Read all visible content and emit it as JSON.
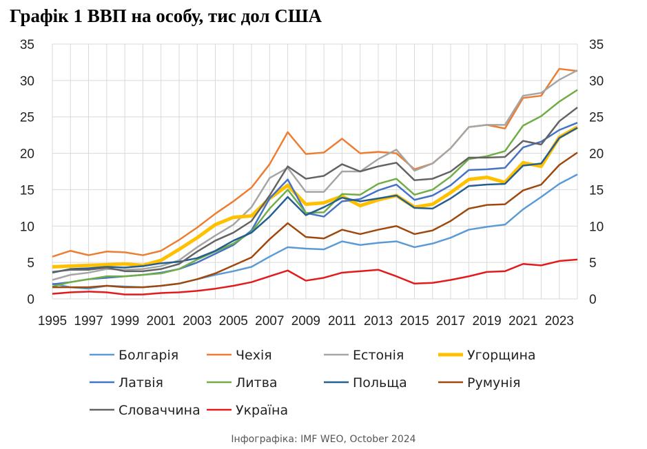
{
  "title": "Графік 1 ВВП на особу, тис дол США",
  "source": "Інфографіка: IMF WEO, October 2024",
  "chart_data": {
    "type": "line",
    "title": "Графік 1 ВВП на особу, тис дол США",
    "xlabel": "",
    "ylabel": "",
    "ylim": [
      0,
      35
    ],
    "yticks": [
      0,
      5,
      10,
      15,
      20,
      25,
      30,
      35
    ],
    "x": [
      1995,
      1996,
      1997,
      1998,
      1999,
      2000,
      2001,
      2002,
      2003,
      2004,
      2005,
      2006,
      2007,
      2008,
      2009,
      2010,
      2011,
      2012,
      2013,
      2014,
      2015,
      2016,
      2017,
      2018,
      2019,
      2020,
      2021,
      2022,
      2023,
      2024
    ],
    "xtick_labels": [
      "1995",
      "1997",
      "1999",
      "2001",
      "2003",
      "2005",
      "2007",
      "2009",
      "2011",
      "2013",
      "2015",
      "2017",
      "2019",
      "2021",
      "2023"
    ],
    "grid": true,
    "legend_position": "bottom",
    "series": [
      {
        "name": "Болгарія",
        "color": "#5b9bd5",
        "width": 2.5,
        "values": [
          2.1,
          1.6,
          1.4,
          1.8,
          1.7,
          1.6,
          1.8,
          2.1,
          2.7,
          3.3,
          3.8,
          4.4,
          5.8,
          7.1,
          6.9,
          6.8,
          7.9,
          7.4,
          7.7,
          7.9,
          7.1,
          7.6,
          8.4,
          9.5,
          9.9,
          10.2,
          12.3,
          14.0,
          15.8,
          17.1
        ]
      },
      {
        "name": "Чехія",
        "color": "#ed7d31",
        "width": 2.5,
        "values": [
          5.8,
          6.6,
          6.0,
          6.5,
          6.4,
          6.0,
          6.6,
          8.1,
          9.8,
          11.7,
          13.4,
          15.3,
          18.5,
          22.9,
          19.9,
          20.1,
          22.0,
          20.0,
          20.2,
          20.0,
          17.8,
          18.6,
          20.7,
          23.6,
          23.9,
          23.4,
          27.6,
          27.9,
          31.6,
          31.3
        ]
      },
      {
        "name": "Естонія",
        "color": "#a5a5a5",
        "width": 2.5,
        "values": [
          2.6,
          3.3,
          3.6,
          4.1,
          4.0,
          4.1,
          4.5,
          5.3,
          7.1,
          8.7,
          10.2,
          12.6,
          16.6,
          18.0,
          14.7,
          14.7,
          17.5,
          17.5,
          19.2,
          20.5,
          17.6,
          18.6,
          20.7,
          23.6,
          23.9,
          23.9,
          27.9,
          28.3,
          30.1,
          31.4
        ]
      },
      {
        "name": "Угорщина",
        "color": "#ffc000",
        "width": 5,
        "values": [
          4.4,
          4.5,
          4.6,
          4.7,
          4.8,
          4.6,
          5.3,
          6.8,
          8.4,
          10.2,
          11.2,
          11.4,
          13.8,
          15.6,
          13.0,
          13.2,
          14.1,
          12.8,
          13.6,
          14.2,
          12.6,
          13.0,
          14.6,
          16.4,
          16.7,
          16.0,
          18.7,
          18.2,
          22.2,
          23.6
        ]
      },
      {
        "name": "Латвія",
        "color": "#4472c4",
        "width": 2.5,
        "values": [
          2.0,
          2.3,
          2.7,
          2.9,
          3.1,
          3.3,
          3.6,
          4.1,
          5.0,
          6.2,
          7.4,
          9.4,
          13.8,
          16.4,
          11.8,
          11.3,
          13.4,
          13.7,
          14.9,
          15.7,
          13.6,
          14.2,
          15.6,
          17.7,
          17.8,
          18.0,
          20.8,
          21.6,
          23.2,
          24.2
        ]
      },
      {
        "name": "Литва",
        "color": "#70ad47",
        "width": 2.5,
        "values": [
          1.7,
          2.3,
          2.7,
          3.1,
          3.1,
          3.3,
          3.5,
          4.1,
          5.4,
          6.5,
          7.6,
          9.2,
          12.4,
          15.0,
          11.8,
          11.9,
          14.4,
          14.3,
          15.8,
          16.5,
          14.3,
          15.0,
          16.8,
          19.2,
          19.6,
          20.3,
          23.8,
          25.1,
          27.1,
          28.7
        ]
      },
      {
        "name": "Польща",
        "color": "#255e91",
        "width": 2.5,
        "values": [
          3.6,
          4.1,
          4.2,
          4.4,
          4.3,
          4.5,
          4.9,
          5.1,
          5.6,
          6.6,
          8.0,
          9.1,
          11.3,
          14.0,
          11.5,
          12.6,
          13.9,
          13.4,
          13.8,
          14.2,
          12.5,
          12.4,
          13.8,
          15.5,
          15.7,
          15.8,
          18.3,
          18.6,
          22.1,
          23.5
        ]
      },
      {
        "name": "Румунія",
        "color": "#9e480e",
        "width": 2.5,
        "values": [
          1.6,
          1.6,
          1.6,
          1.8,
          1.6,
          1.6,
          1.8,
          2.1,
          2.7,
          3.5,
          4.6,
          5.7,
          8.2,
          10.4,
          8.5,
          8.3,
          9.5,
          8.9,
          9.5,
          10.0,
          8.9,
          9.4,
          10.7,
          12.4,
          12.9,
          13.0,
          14.9,
          15.7,
          18.4,
          20.1
        ]
      },
      {
        "name": "Словаччина",
        "color": "#636363",
        "width": 2.5,
        "values": [
          3.7,
          4.0,
          4.0,
          4.3,
          3.8,
          3.8,
          4.1,
          4.8,
          6.5,
          8.0,
          9.1,
          10.7,
          14.2,
          18.2,
          16.5,
          16.9,
          18.5,
          17.5,
          18.2,
          18.7,
          16.3,
          16.5,
          17.5,
          19.4,
          19.4,
          19.5,
          21.7,
          21.2,
          24.4,
          26.3
        ]
      },
      {
        "name": "Україна",
        "color": "#e31a1c",
        "width": 2.5,
        "values": [
          0.7,
          0.9,
          1.0,
          0.9,
          0.6,
          0.6,
          0.8,
          0.9,
          1.1,
          1.4,
          1.8,
          2.3,
          3.1,
          3.9,
          2.5,
          2.9,
          3.6,
          3.8,
          4.0,
          3.1,
          2.1,
          2.2,
          2.6,
          3.1,
          3.7,
          3.8,
          4.8,
          4.6,
          5.2,
          5.4
        ]
      }
    ]
  }
}
